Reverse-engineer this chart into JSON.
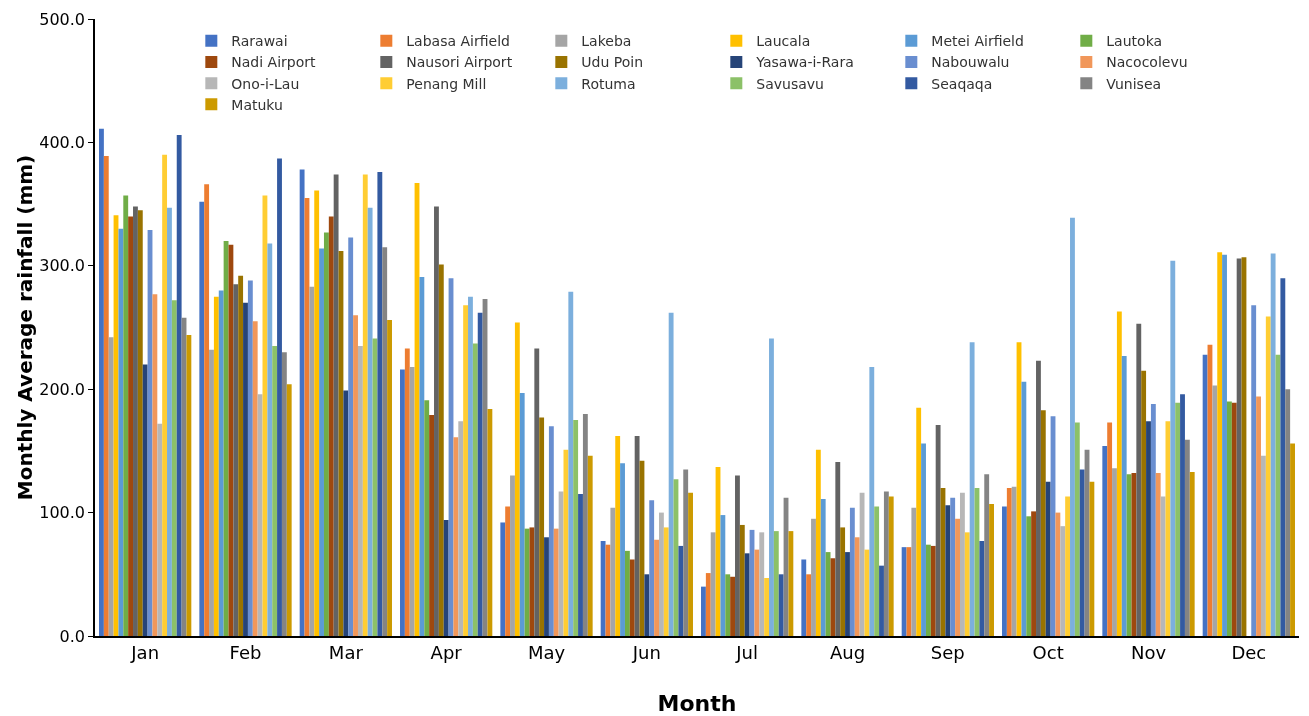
{
  "chart_data": {
    "type": "bar",
    "xlabel": "Month",
    "ylabel": "Monthly Average rainfall (mm)",
    "categories": [
      "Jan",
      "Feb",
      "Mar",
      "Apr",
      "May",
      "Jun",
      "Jul",
      "Aug",
      "Sep",
      "Oct",
      "Nov",
      "Dec"
    ],
    "ylim": [
      0,
      500
    ],
    "yticks": [
      {
        "value": 0,
        "label": "0.0"
      },
      {
        "value": 100,
        "label": "100.0"
      },
      {
        "value": 200,
        "label": "200.0"
      },
      {
        "value": 300,
        "label": "300.0"
      },
      {
        "value": 400,
        "label": "400.0"
      },
      {
        "value": 500,
        "label": "500.0"
      }
    ],
    "grid": false,
    "legend": "top",
    "series": [
      {
        "name": "Rarawai",
        "color": "#4472c4",
        "values": [
          411,
          352,
          378,
          216,
          92,
          77,
          40,
          62,
          72,
          105,
          154,
          228
        ]
      },
      {
        "name": "Labasa Airfield",
        "color": "#ed7d31",
        "values": [
          389,
          366,
          355,
          233,
          105,
          74,
          51,
          50,
          72,
          120,
          173,
          236
        ]
      },
      {
        "name": "Lakeba",
        "color": "#a5a5a5",
        "values": [
          242,
          232,
          283,
          218,
          130,
          104,
          84,
          95,
          104,
          121,
          136,
          203
        ]
      },
      {
        "name": "Laucala",
        "color": "#ffc000",
        "values": [
          341,
          275,
          361,
          367,
          254,
          162,
          137,
          151,
          185,
          238,
          263,
          311
        ]
      },
      {
        "name": "Metei Airfield",
        "color": "#5b9bd5",
        "values": [
          330,
          280,
          314,
          291,
          197,
          140,
          98,
          111,
          156,
          206,
          227,
          309
        ]
      },
      {
        "name": "Lautoka",
        "color": "#70ad47",
        "values": [
          357,
          320,
          327,
          191,
          87,
          69,
          50,
          68,
          74,
          97,
          131,
          190
        ]
      },
      {
        "name": "Nadi Airport",
        "color": "#9e480e",
        "values": [
          340,
          317,
          340,
          179,
          88,
          62,
          48,
          63,
          73,
          101,
          132,
          189
        ]
      },
      {
        "name": "Nausori Airport",
        "color": "#636363",
        "values": [
          348,
          285,
          374,
          348,
          233,
          162,
          130,
          141,
          171,
          223,
          253,
          306
        ]
      },
      {
        "name": "Udu Poin",
        "color": "#997300",
        "values": [
          345,
          292,
          312,
          301,
          177,
          142,
          90,
          88,
          120,
          183,
          215,
          307
        ]
      },
      {
        "name": "Yasawa-i-Rara",
        "color": "#264478",
        "values": [
          220,
          270,
          199,
          94,
          80,
          50,
          67,
          68,
          106,
          125,
          174,
          null
        ]
      },
      {
        "name": "Nabouwalu",
        "color": "#698ed0",
        "values": [
          329,
          288,
          323,
          290,
          170,
          110,
          86,
          104,
          112,
          178,
          188,
          268
        ]
      },
      {
        "name": "Nacocolevu",
        "color": "#f1975a",
        "values": [
          277,
          255,
          260,
          161,
          87,
          78,
          70,
          80,
          95,
          100,
          132,
          194
        ]
      },
      {
        "name": "Ono-i-Lau",
        "color": "#b7b7b7",
        "values": [
          172,
          196,
          235,
          174,
          117,
          100,
          84,
          116,
          116,
          89,
          113,
          146
        ]
      },
      {
        "name": "Penang Mill",
        "color": "#ffcd33",
        "values": [
          390,
          357,
          374,
          268,
          151,
          88,
          47,
          70,
          84,
          113,
          174,
          259
        ]
      },
      {
        "name": "Rotuma",
        "color": "#7cafdd",
        "values": [
          347,
          318,
          347,
          275,
          279,
          262,
          241,
          218,
          238,
          339,
          304,
          310
        ]
      },
      {
        "name": "Savusavu",
        "color": "#8cc168",
        "values": [
          272,
          235,
          241,
          237,
          175,
          127,
          85,
          105,
          120,
          173,
          189,
          228
        ]
      },
      {
        "name": "Seaqaqa",
        "color": "#335aa1",
        "values": [
          406,
          387,
          376,
          262,
          115,
          73,
          50,
          57,
          77,
          135,
          196,
          290
        ]
      },
      {
        "name": "Vunisea",
        "color": "#848484",
        "values": [
          258,
          230,
          315,
          273,
          180,
          135,
          112,
          117,
          131,
          151,
          159,
          200
        ]
      },
      {
        "name": "Matuku",
        "color": "#cc9a00",
        "values": [
          244,
          204,
          256,
          184,
          146,
          116,
          85,
          113,
          107,
          125,
          133,
          156
        ]
      }
    ]
  }
}
